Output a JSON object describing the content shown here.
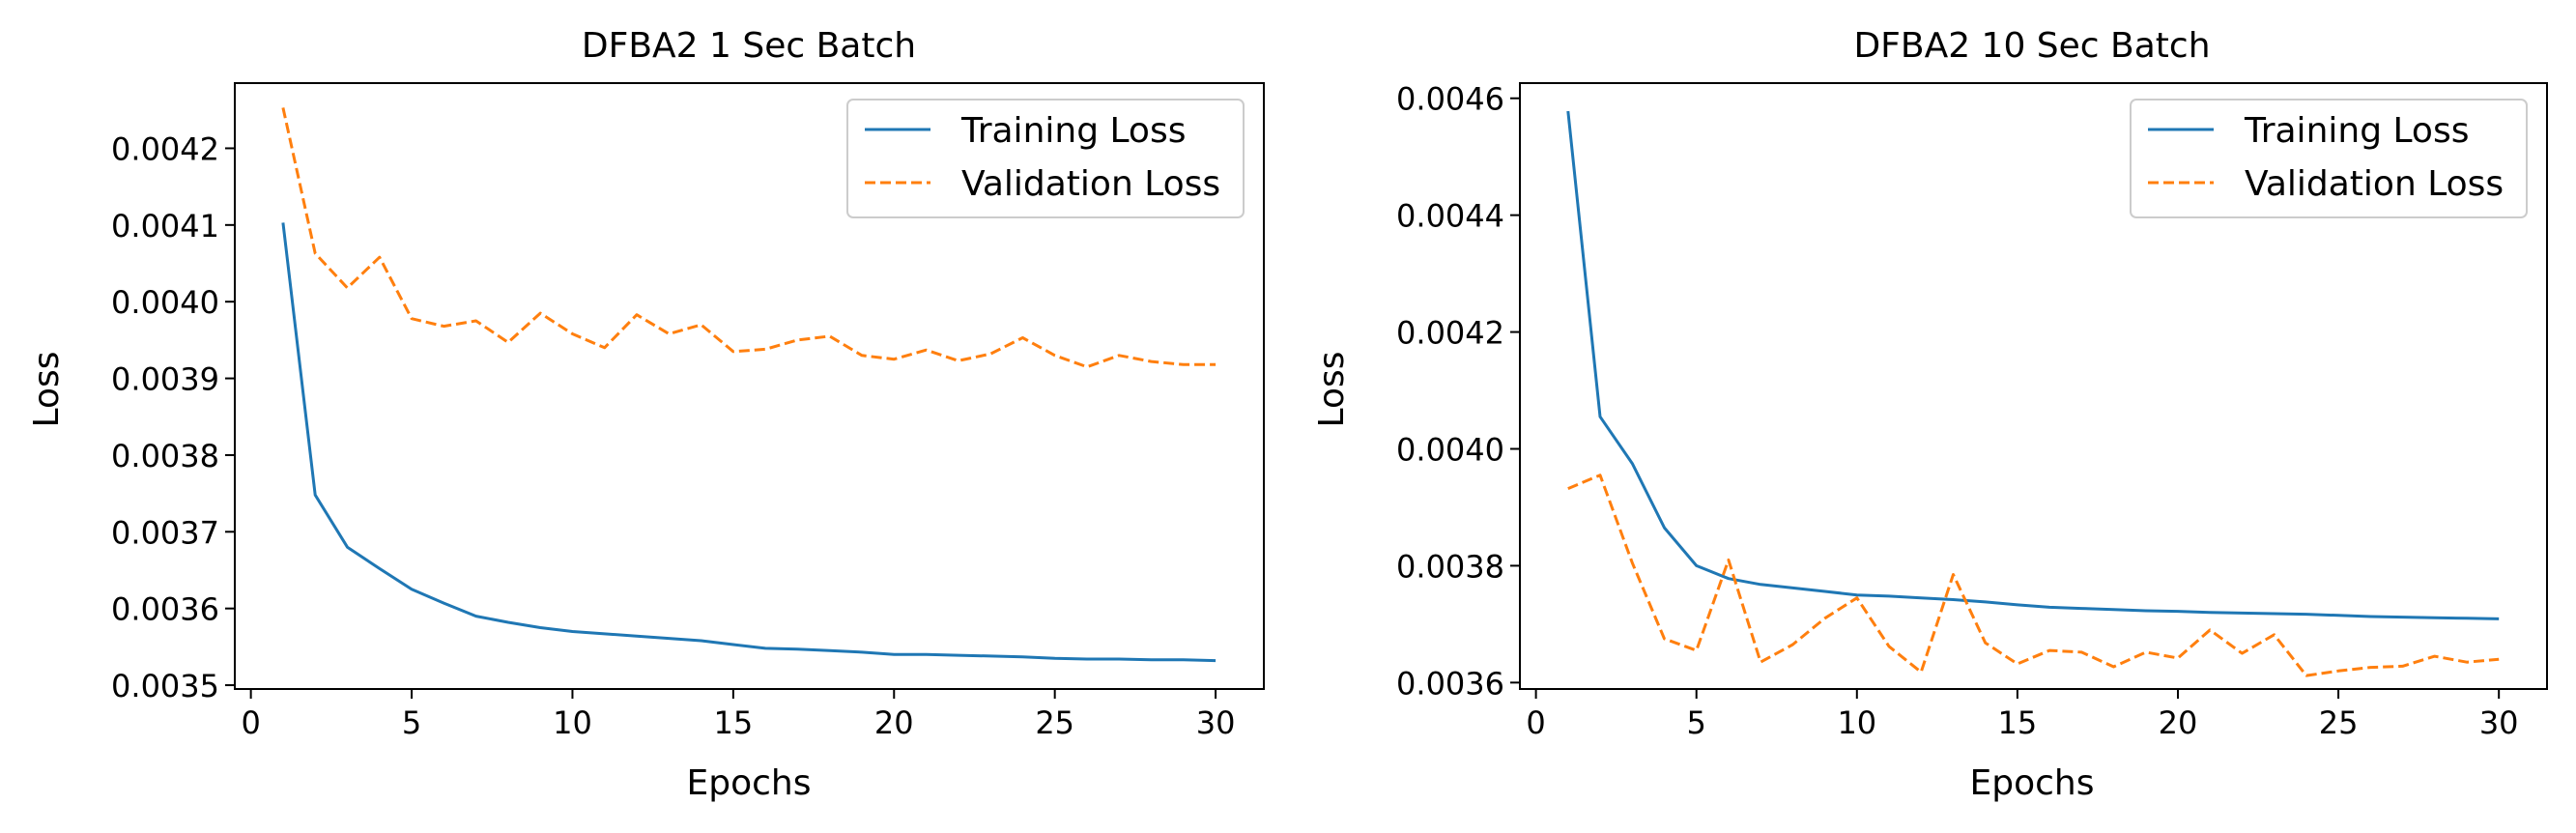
{
  "chart_data": [
    {
      "type": "line",
      "title": "DFBA2 1 Sec Batch",
      "xlabel": "Epochs",
      "ylabel": "Loss",
      "xlim": [
        -0.5,
        31.5
      ],
      "ylim": [
        0.003495,
        0.004285
      ],
      "xticks": [
        0,
        5,
        10,
        15,
        20,
        25,
        30
      ],
      "yticks": [
        0.0035,
        0.0036,
        0.0037,
        0.0038,
        0.0039,
        0.004,
        0.0041,
        0.0042
      ],
      "ytick_labels": [
        "0.0035",
        "0.0036",
        "0.0037",
        "0.0038",
        "0.0039",
        "0.0040",
        "0.0041",
        "0.0042"
      ],
      "grid": false,
      "legend_position": "top-right",
      "x": [
        1,
        2,
        3,
        4,
        5,
        6,
        7,
        8,
        9,
        10,
        11,
        12,
        13,
        14,
        15,
        16,
        17,
        18,
        19,
        20,
        21,
        22,
        23,
        24,
        25,
        26,
        27,
        28,
        29,
        30
      ],
      "series": [
        {
          "name": "Training Loss",
          "color": "#1f77b4",
          "style": "solid",
          "values": [
            0.004103,
            0.003748,
            0.00368,
            0.003652,
            0.003625,
            0.003607,
            0.00359,
            0.003582,
            0.003575,
            0.00357,
            0.003567,
            0.003564,
            0.003561,
            0.003558,
            0.003553,
            0.003548,
            0.003547,
            0.003545,
            0.003543,
            0.00354,
            0.00354,
            0.003539,
            0.003538,
            0.003537,
            0.003535,
            0.003534,
            0.003534,
            0.003533,
            0.003533,
            0.003532
          ]
        },
        {
          "name": "Validation Loss",
          "color": "#ff7f0e",
          "style": "dashed",
          "values": [
            0.004253,
            0.004063,
            0.004018,
            0.004058,
            0.003978,
            0.003968,
            0.003975,
            0.003947,
            0.003985,
            0.003958,
            0.00394,
            0.003983,
            0.003958,
            0.00397,
            0.003935,
            0.003938,
            0.00395,
            0.003955,
            0.00393,
            0.003925,
            0.003937,
            0.003923,
            0.003932,
            0.003953,
            0.00393,
            0.003915,
            0.00393,
            0.003922,
            0.003918,
            0.003918
          ]
        }
      ]
    },
    {
      "type": "line",
      "title": "DFBA2 10 Sec Batch",
      "xlabel": "Epochs",
      "ylabel": "Loss",
      "xlim": [
        -0.5,
        31.5
      ],
      "ylim": [
        0.003589,
        0.004626
      ],
      "xticks": [
        0,
        5,
        10,
        15,
        20,
        25,
        30
      ],
      "yticks": [
        0.0036,
        0.0038,
        0.004,
        0.0042,
        0.0044,
        0.0046
      ],
      "ytick_labels": [
        "0.0036",
        "0.0038",
        "0.0040",
        "0.0042",
        "0.0044",
        "0.0046"
      ],
      "grid": false,
      "legend_position": "top-right",
      "x": [
        1,
        2,
        3,
        4,
        5,
        6,
        7,
        8,
        9,
        10,
        11,
        12,
        13,
        14,
        15,
        16,
        17,
        18,
        19,
        20,
        21,
        22,
        23,
        24,
        25,
        26,
        27,
        28,
        29,
        30
      ],
      "series": [
        {
          "name": "Training Loss",
          "color": "#1f77b4",
          "style": "solid",
          "values": [
            0.004578,
            0.004055,
            0.003975,
            0.003865,
            0.0038,
            0.003778,
            0.003768,
            0.003762,
            0.003756,
            0.00375,
            0.003748,
            0.003745,
            0.003742,
            0.003738,
            0.003733,
            0.003729,
            0.003727,
            0.003725,
            0.003723,
            0.003722,
            0.00372,
            0.003719,
            0.003718,
            0.003717,
            0.003715,
            0.003713,
            0.003712,
            0.003711,
            0.00371,
            0.003709
          ]
        },
        {
          "name": "Validation Loss",
          "color": "#ff7f0e",
          "style": "dashed",
          "values": [
            0.003932,
            0.003955,
            0.003805,
            0.003675,
            0.003655,
            0.00381,
            0.003635,
            0.003665,
            0.00371,
            0.003745,
            0.003662,
            0.003618,
            0.003785,
            0.003668,
            0.003632,
            0.003655,
            0.003652,
            0.003627,
            0.003652,
            0.003642,
            0.00369,
            0.00365,
            0.003682,
            0.003612,
            0.00362,
            0.003626,
            0.003628,
            0.003645,
            0.003635,
            0.00364
          ]
        }
      ]
    }
  ]
}
